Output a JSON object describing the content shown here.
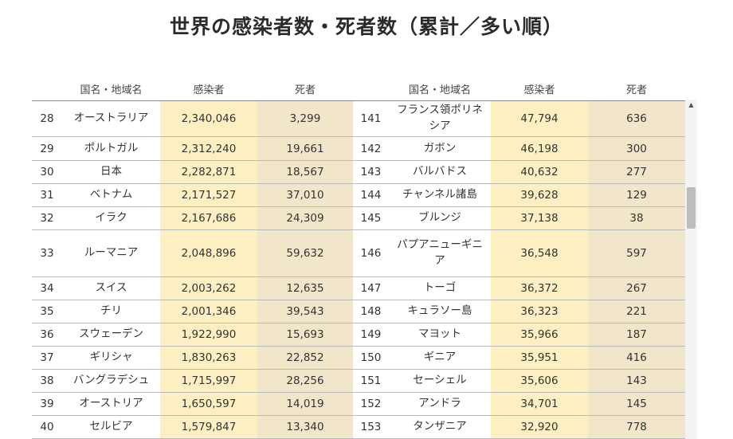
{
  "title": "世界の感染者数・死者数（累計／多い順）",
  "headers": {
    "name": "国名・地域名",
    "cases": "感染者",
    "deaths": "死者"
  },
  "left_rows": [
    {
      "rank": "28",
      "name": "オーストラリア",
      "cases": "2,340,046",
      "deaths": "3,299"
    },
    {
      "rank": "29",
      "name": "ポルトガル",
      "cases": "2,312,240",
      "deaths": "19,661"
    },
    {
      "rank": "30",
      "name": "日本",
      "cases": "2,282,871",
      "deaths": "18,567"
    },
    {
      "rank": "31",
      "name": "ベトナム",
      "cases": "2,171,527",
      "deaths": "37,010"
    },
    {
      "rank": "32",
      "name": "イラク",
      "cases": "2,167,686",
      "deaths": "24,309"
    },
    {
      "rank": "33",
      "name": "ルーマニア",
      "cases": "2,048,896",
      "deaths": "59,632"
    },
    {
      "rank": "34",
      "name": "スイス",
      "cases": "2,003,262",
      "deaths": "12,635"
    },
    {
      "rank": "35",
      "name": "チリ",
      "cases": "2,001,346",
      "deaths": "39,543"
    },
    {
      "rank": "36",
      "name": "スウェーデン",
      "cases": "1,922,990",
      "deaths": "15,693"
    },
    {
      "rank": "37",
      "name": "ギリシャ",
      "cases": "1,830,263",
      "deaths": "22,852"
    },
    {
      "rank": "38",
      "name": "バングラデシュ",
      "cases": "1,715,997",
      "deaths": "28,256"
    },
    {
      "rank": "39",
      "name": "オーストリア",
      "cases": "1,650,597",
      "deaths": "14,019"
    },
    {
      "rank": "40",
      "name": "セルビア",
      "cases": "1,579,847",
      "deaths": "13,340"
    }
  ],
  "right_rows": [
    {
      "rank": "141",
      "name": "フランス領ポリネシア",
      "cases": "47,794",
      "deaths": "636"
    },
    {
      "rank": "142",
      "name": "ガボン",
      "cases": "46,198",
      "deaths": "300"
    },
    {
      "rank": "143",
      "name": "バルバドス",
      "cases": "40,632",
      "deaths": "277"
    },
    {
      "rank": "144",
      "name": "チャンネル諸島",
      "cases": "39,628",
      "deaths": "129"
    },
    {
      "rank": "145",
      "name": "ブルンジ",
      "cases": "37,138",
      "deaths": "38"
    },
    {
      "rank": "146",
      "name": "パプアニューギニア",
      "cases": "36,548",
      "deaths": "597"
    },
    {
      "rank": "147",
      "name": "トーゴ",
      "cases": "36,372",
      "deaths": "267"
    },
    {
      "rank": "148",
      "name": "キュラソー島",
      "cases": "36,323",
      "deaths": "221"
    },
    {
      "rank": "149",
      "name": "マヨット",
      "cases": "35,966",
      "deaths": "187"
    },
    {
      "rank": "150",
      "name": "ギニア",
      "cases": "35,951",
      "deaths": "416"
    },
    {
      "rank": "151",
      "name": "セーシェル",
      "cases": "35,606",
      "deaths": "143"
    },
    {
      "rank": "152",
      "name": "アンドラ",
      "cases": "34,701",
      "deaths": "145"
    },
    {
      "rank": "153",
      "name": "タンザニア",
      "cases": "32,920",
      "deaths": "778"
    }
  ],
  "scrollbar": {
    "up_icon": "scroll-up-arrow-icon"
  }
}
